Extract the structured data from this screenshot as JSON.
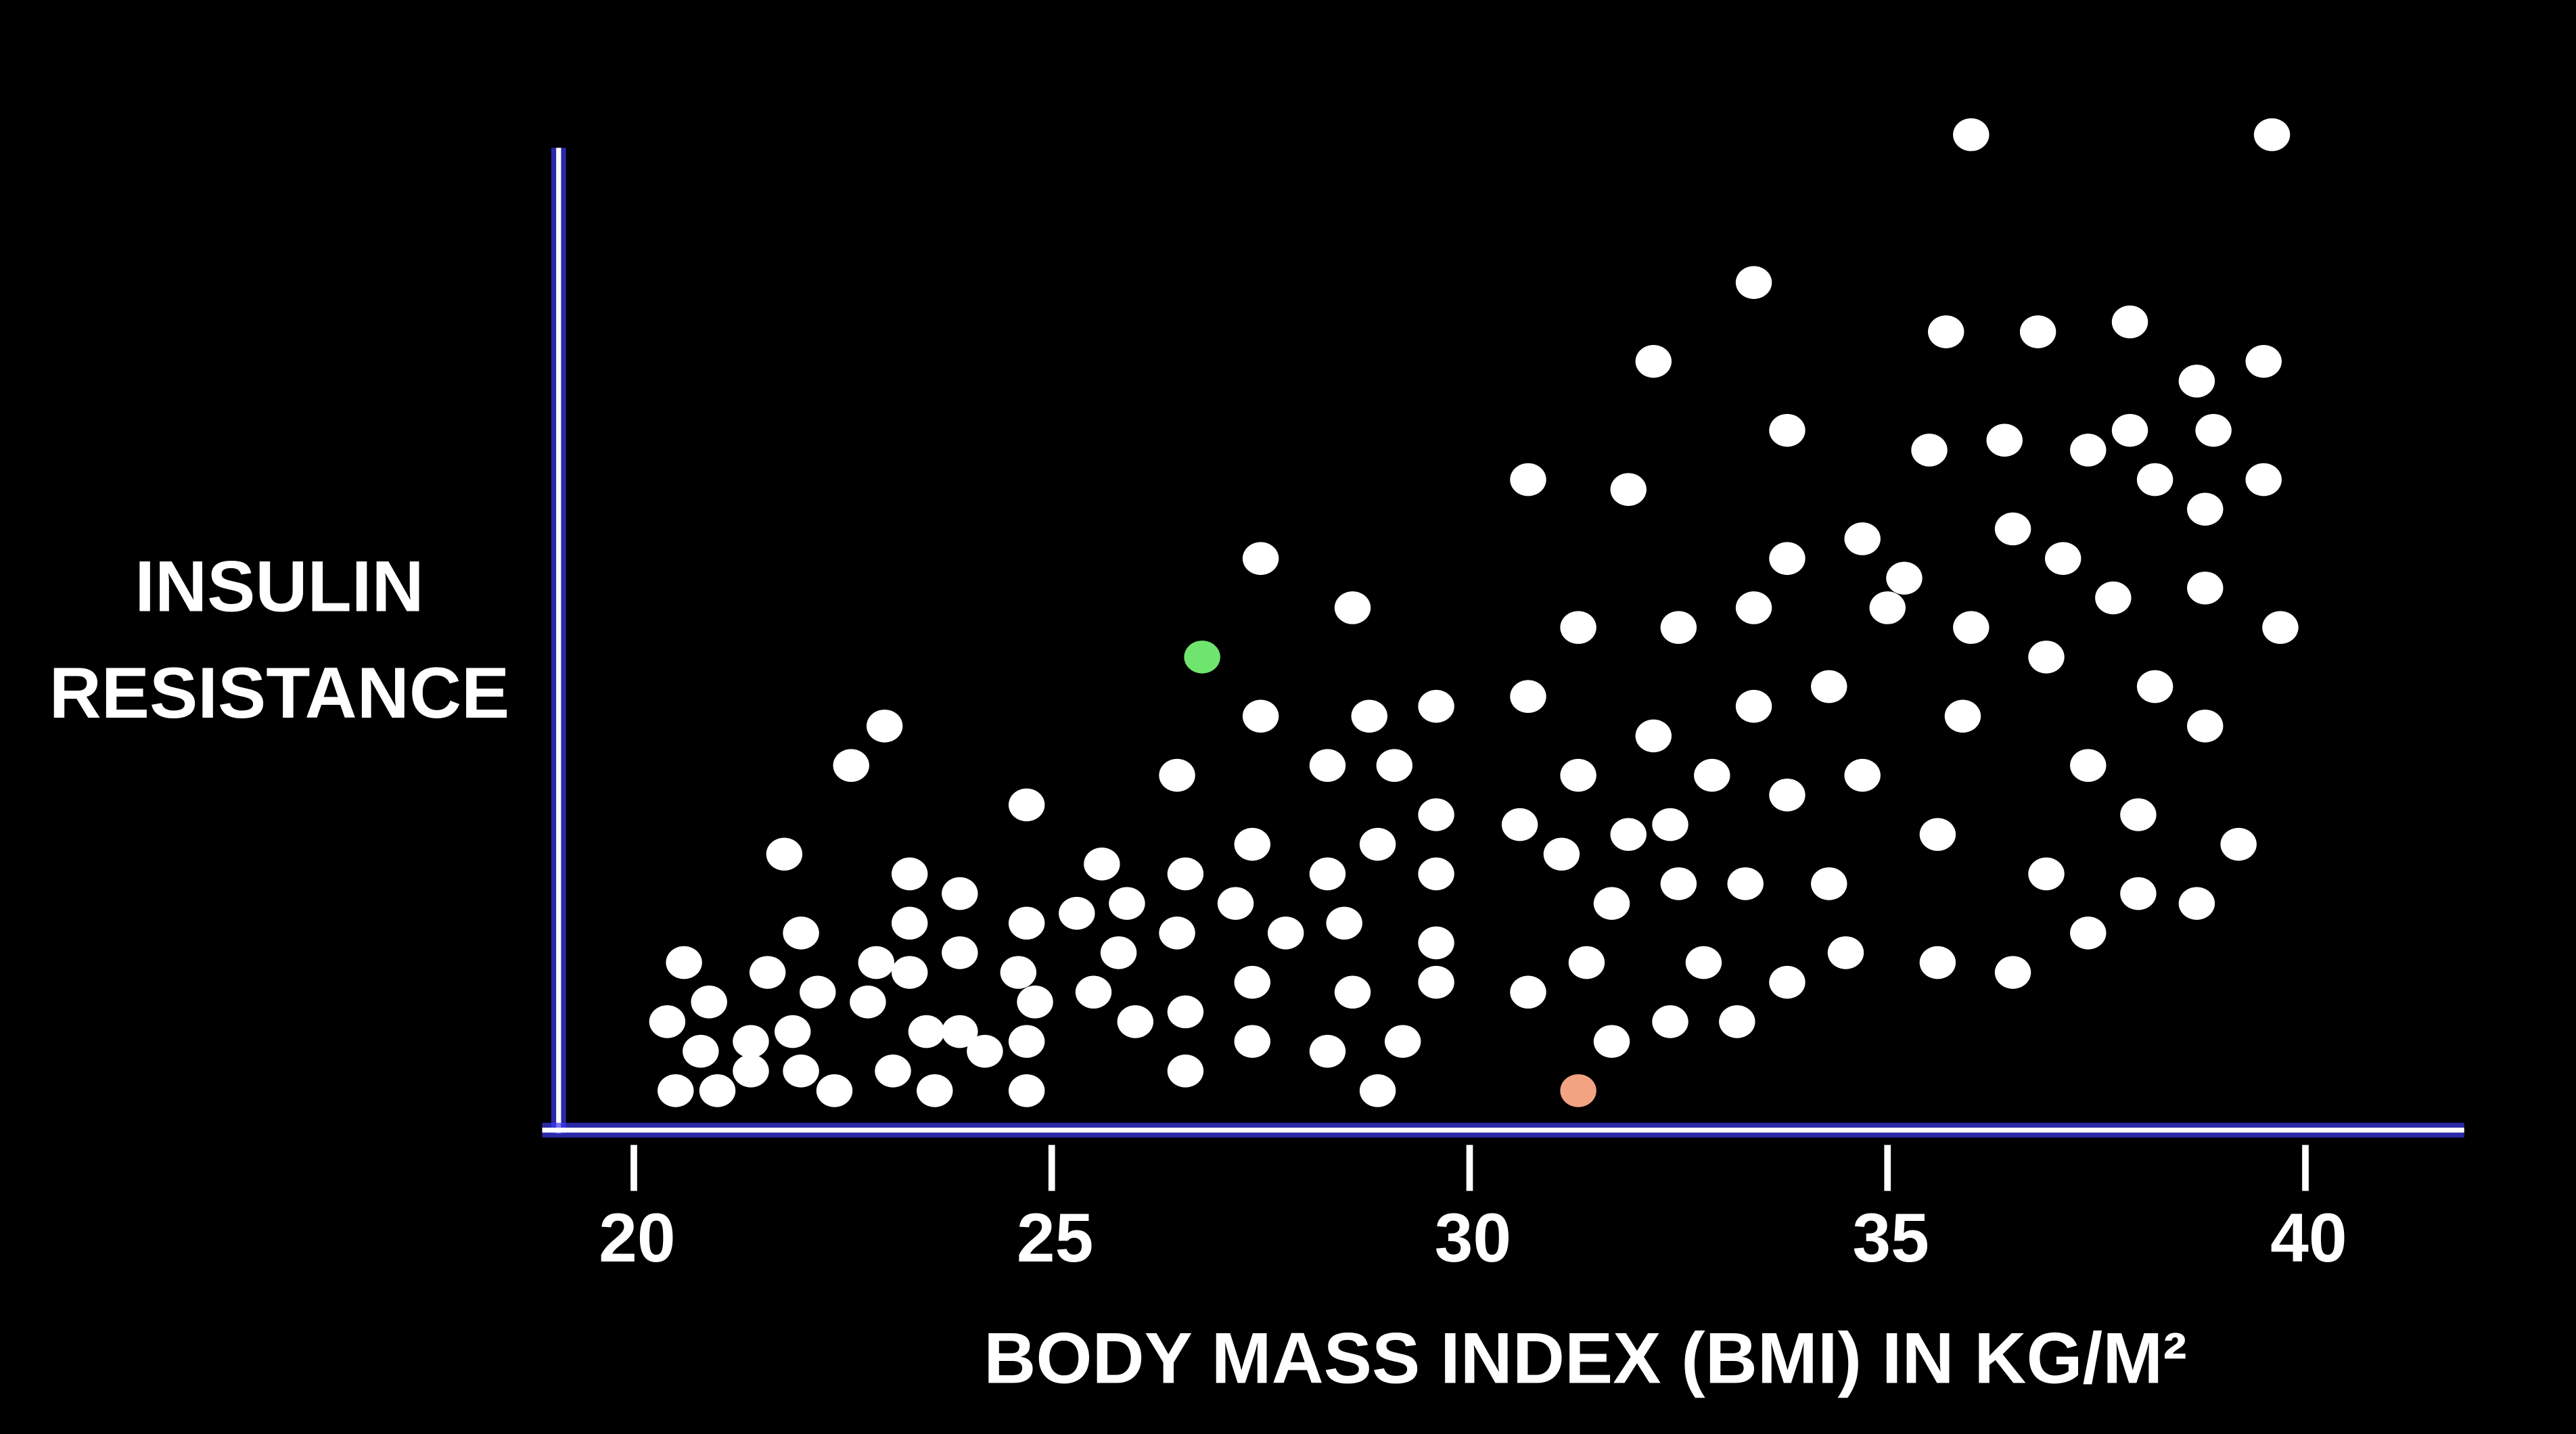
{
  "chart_data": {
    "type": "scatter",
    "x_label": "BODY MASS INDEX (BMI) IN KG/M²",
    "y_label": [
      "INSULIN",
      "RESISTANCE"
    ],
    "xlim": [
      19.1,
      41.9
    ],
    "xticks": [
      20,
      25,
      30,
      35,
      40
    ],
    "ylim": [
      0,
      105
    ],
    "series": [
      {
        "color": "#ffffff",
        "x": [
          36.0,
          39.6,
          33.4,
          35.7,
          36.8,
          37.9,
          32.2,
          39.5,
          38.7,
          33.8,
          35.5,
          36.4,
          37.4,
          37.9,
          38.9,
          30.7,
          31.9,
          38.2,
          39.5,
          38.8,
          34.7,
          36.5,
          33.8,
          37.1,
          27.5,
          35.2,
          33.4,
          35.0,
          37.7,
          38.8,
          28.6,
          31.3,
          32.5,
          36.0,
          39.7,
          36.9,
          34.3,
          38.2,
          30.7,
          29.6,
          33.4,
          35.9,
          27.5,
          28.8,
          23.0,
          38.8,
          32.2,
          22.6,
          28.3,
          29.1,
          31.3,
          32.9,
          34.7,
          37.4,
          26.5,
          33.8,
          24.7,
          29.6,
          38.0,
          30.6,
          31.9,
          32.4,
          35.6,
          39.2,
          27.4,
          28.9,
          21.8,
          25.6,
          26.6,
          28.3,
          31.1,
          29.6,
          23.3,
          32.5,
          33.3,
          34.3,
          36.9,
          23.9,
          25.9,
          38.0,
          38.7,
          25.3,
          27.2,
          31.7,
          23.3,
          24.7,
          28.5,
          22.0,
          26.5,
          27.8,
          29.6,
          37.4,
          25.8,
          22.9,
          23.9,
          20.6,
          32.8,
          34.5,
          35.6,
          31.4,
          21.6,
          23.3,
          24.6,
          36.5,
          29.6,
          33.8,
          22.2,
          25.5,
          27.4,
          28.6,
          20.9,
          22.8,
          24.8,
          30.7,
          20.4,
          26.0,
          26.6,
          32.4,
          33.2,
          21.9,
          23.5,
          23.9,
          21.4,
          27.4,
          29.2,
          31.7,
          20.8,
          24.2,
          24.7,
          28.3,
          21.4,
          22.0,
          23.1,
          26.6,
          23.6,
          24.7,
          20.5,
          21.0,
          22.4,
          28.9
        ],
        "values": [
          101,
          101,
          86,
          81,
          81,
          82,
          78,
          78,
          76,
          71,
          69,
          70,
          69,
          71,
          71,
          66,
          65,
          66,
          66,
          63,
          60,
          61,
          58,
          58,
          58,
          56,
          53,
          53,
          54,
          55,
          53,
          51,
          51,
          51,
          51,
          48,
          45,
          45,
          44,
          43,
          43,
          42,
          42,
          42,
          41,
          41,
          40,
          37,
          37,
          37,
          36,
          36,
          36,
          37,
          36,
          34,
          33,
          32,
          32,
          31,
          30,
          31,
          30,
          29,
          29,
          29,
          28,
          27,
          26,
          26,
          28,
          26,
          26,
          25,
          25,
          25,
          26,
          24,
          23,
          24,
          23,
          22,
          23,
          23,
          21,
          21,
          21,
          20,
          20,
          20,
          19,
          20,
          18,
          17,
          18,
          17,
          17,
          18,
          17,
          17,
          16,
          16,
          16,
          16,
          15,
          15,
          14,
          14,
          15,
          14,
          13,
          13,
          13,
          14,
          11,
          11,
          12,
          11,
          11,
          10,
          10,
          10,
          9,
          9,
          9,
          9,
          8,
          8,
          9,
          8,
          6,
          6,
          6,
          6,
          4,
          4,
          4,
          4,
          4,
          4
        ]
      },
      {
        "color": "#6fe46f",
        "x": [
          26.8
        ],
        "values": [
          48
        ]
      },
      {
        "color": "#f2a382",
        "x": [
          31.3
        ],
        "values": [
          4
        ]
      }
    ]
  }
}
